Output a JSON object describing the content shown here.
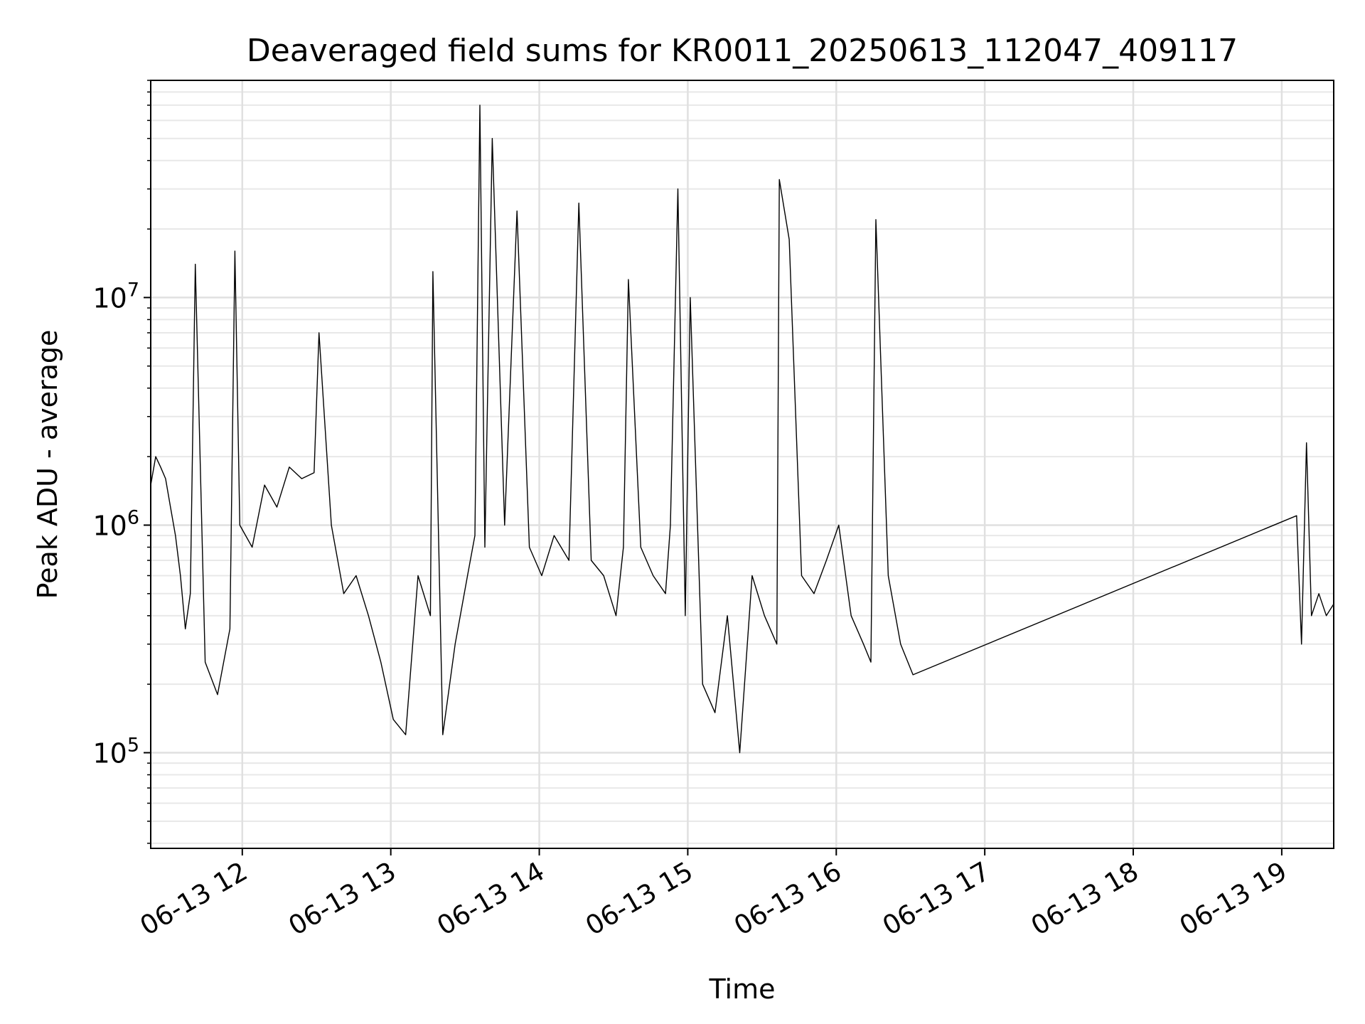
{
  "chart_data": {
    "type": "line",
    "title": "Deaveraged field sums for KR0011_20250613_112047_409117",
    "xlabel": "Time",
    "ylabel": "Peak ADU - average",
    "xscale": "time",
    "yscale": "log",
    "xlim": [
      "2025-06-13 11:23",
      "2025-06-13 19:21"
    ],
    "ylim": [
      38000,
      90000000
    ],
    "x_ticks": [
      "06-13 12",
      "06-13 13",
      "06-13 14",
      "06-13 15",
      "06-13 16",
      "06-13 17",
      "06-13 18",
      "06-13 19"
    ],
    "y_ticks": [
      "10^5",
      "10^6",
      "10^7"
    ],
    "grid": true,
    "line_color": "#000000",
    "series": [
      {
        "x": [
          "2025-06-13 11:23",
          "2025-06-13 11:25",
          "2025-06-13 11:27",
          "2025-06-13 11:29",
          "2025-06-13 11:31",
          "2025-06-13 11:33",
          "2025-06-13 11:35",
          "2025-06-13 11:37",
          "2025-06-13 11:39",
          "2025-06-13 11:41",
          "2025-06-13 11:45",
          "2025-06-13 11:50",
          "2025-06-13 11:55",
          "2025-06-13 11:57",
          "2025-06-13 11:59",
          "2025-06-13 12:04",
          "2025-06-13 12:09",
          "2025-06-13 12:14",
          "2025-06-13 12:19",
          "2025-06-13 12:24",
          "2025-06-13 12:29",
          "2025-06-13 12:31",
          "2025-06-13 12:36",
          "2025-06-13 12:41",
          "2025-06-13 12:46",
          "2025-06-13 12:51",
          "2025-06-13 12:56",
          "2025-06-13 13:01",
          "2025-06-13 13:06",
          "2025-06-13 13:11",
          "2025-06-13 13:16",
          "2025-06-13 13:17",
          "2025-06-13 13:21",
          "2025-06-13 13:26",
          "2025-06-13 13:31",
          "2025-06-13 13:34",
          "2025-06-13 13:36",
          "2025-06-13 13:38",
          "2025-06-13 13:41",
          "2025-06-13 13:46",
          "2025-06-13 13:51",
          "2025-06-13 13:56",
          "2025-06-13 14:01",
          "2025-06-13 14:06",
          "2025-06-13 14:12",
          "2025-06-13 14:16",
          "2025-06-13 14:21",
          "2025-06-13 14:26",
          "2025-06-13 14:31",
          "2025-06-13 14:34",
          "2025-06-13 14:36",
          "2025-06-13 14:41",
          "2025-06-13 14:46",
          "2025-06-13 14:51",
          "2025-06-13 14:53",
          "2025-06-13 14:56",
          "2025-06-13 14:59",
          "2025-06-13 15:01",
          "2025-06-13 15:06",
          "2025-06-13 15:11",
          "2025-06-13 15:16",
          "2025-06-13 15:21",
          "2025-06-13 15:26",
          "2025-06-13 15:31",
          "2025-06-13 15:36",
          "2025-06-13 15:37",
          "2025-06-13 15:41",
          "2025-06-13 15:46",
          "2025-06-13 15:51",
          "2025-06-13 15:56",
          "2025-06-13 16:01",
          "2025-06-13 16:06",
          "2025-06-13 16:11",
          "2025-06-13 16:14",
          "2025-06-13 16:16",
          "2025-06-13 16:21",
          "2025-06-13 16:26",
          "2025-06-13 16:31",
          "2025-06-13 19:06",
          "2025-06-13 19:08",
          "2025-06-13 19:10",
          "2025-06-13 19:12",
          "2025-06-13 19:15",
          "2025-06-13 19:18",
          "2025-06-13 19:21"
        ],
        "y": [
          1500000,
          2000000,
          1800000,
          1600000,
          1200000,
          900000,
          600000,
          350000,
          500000,
          14000000,
          250000,
          180000,
          350000,
          16000000,
          1000000,
          800000,
          1500000,
          1200000,
          1800000,
          1600000,
          1700000,
          7000000,
          1000000,
          500000,
          600000,
          400000,
          250000,
          140000,
          120000,
          600000,
          400000,
          13000000,
          120000,
          300000,
          600000,
          900000,
          70000000,
          800000,
          50000000,
          1000000,
          24000000,
          800000,
          600000,
          900000,
          700000,
          26000000,
          700000,
          600000,
          400000,
          800000,
          12000000,
          800000,
          600000,
          500000,
          1000000,
          30000000,
          400000,
          10000000,
          200000,
          150000,
          400000,
          100000,
          600000,
          400000,
          300000,
          33000000,
          18000000,
          600000,
          500000,
          700000,
          1000000,
          400000,
          300000,
          250000,
          22000000,
          600000,
          300000,
          220000,
          1100000,
          300000,
          2300000,
          400000,
          500000,
          400000,
          450000
        ]
      }
    ]
  }
}
